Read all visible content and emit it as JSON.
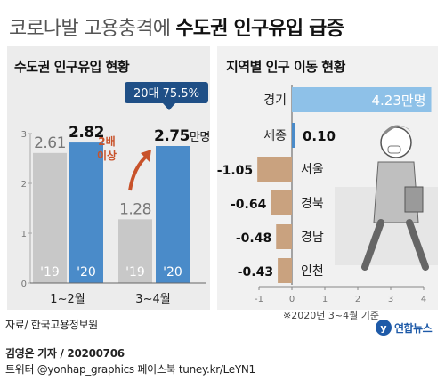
{
  "headline": {
    "light": "코로나발 고용충격에 ",
    "bold": "수도권 인구유입 급증"
  },
  "colors": {
    "gray_bar": "#c8c8c8",
    "blue_bar": "#4a8bc9",
    "light_blue_bar": "#8ec1e8",
    "tan_bar": "#c9a27f",
    "callout": "#1f4f86",
    "arrow": "#c8522a"
  },
  "chart_data": [
    {
      "type": "bar",
      "title": "수도권 인구유입 현황",
      "groups": [
        "1~2월",
        "3~4월"
      ],
      "bars": [
        {
          "group": "1~2월",
          "year": "'19",
          "value": 2.61,
          "label": "2.61",
          "color": "gray"
        },
        {
          "group": "1~2월",
          "year": "'20",
          "value": 2.82,
          "label": "2.82",
          "color": "blue"
        },
        {
          "group": "3~4월",
          "year": "'19",
          "value": 1.28,
          "label": "1.28",
          "color": "gray"
        },
        {
          "group": "3~4월",
          "year": "'20",
          "value": 2.75,
          "label": "2.75",
          "unit": "만명",
          "color": "blue"
        }
      ],
      "ylim": [
        0,
        3
      ],
      "yticks": [
        "0",
        "1",
        "2",
        "3"
      ],
      "callout": "20대 75.5%",
      "annotation": "2배\n이상"
    },
    {
      "type": "bar",
      "orientation": "horizontal",
      "title": "지역별 인구 이동 현황",
      "items": [
        {
          "region": "경기",
          "value": 4.23,
          "label": "4.23만명"
        },
        {
          "region": "세종",
          "value": 0.1,
          "label": "0.10"
        },
        {
          "region": "서울",
          "value": -1.05,
          "label": "-1.05"
        },
        {
          "region": "경북",
          "value": -0.64,
          "label": "-0.64"
        },
        {
          "region": "경남",
          "value": -0.48,
          "label": "-0.48"
        },
        {
          "region": "인천",
          "value": -0.43,
          "label": "-0.43"
        }
      ],
      "xlim": [
        -1,
        4
      ],
      "xticks": [
        "-1",
        "0",
        "1",
        "2",
        "3",
        "4"
      ],
      "note": "※2020년 3~4월 기준"
    }
  ],
  "source": "자료/ 한국고용정보원",
  "logo_text": "연합뉴스",
  "byline": "김영은 기자 / 20200706",
  "social": "트위터 @yonhap_graphics  페이스북 tuney.kr/LeYN1"
}
